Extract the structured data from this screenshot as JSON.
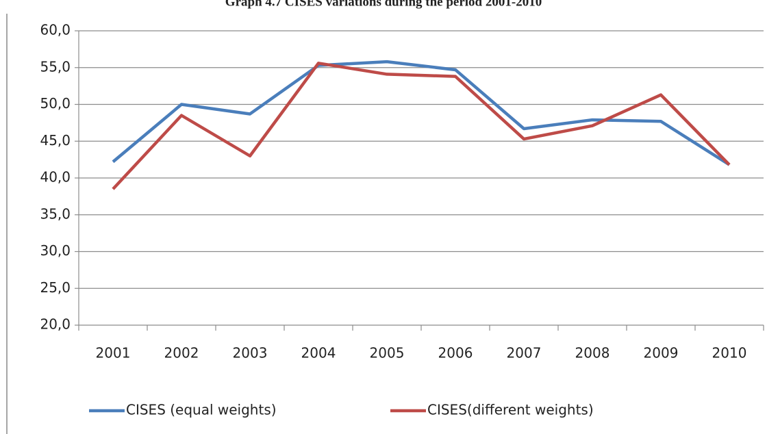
{
  "chart_data": {
    "type": "line",
    "title": "Graph 4.7 CISES variations during the period 2001-2010",
    "categories": [
      "2001",
      "2002",
      "2003",
      "2004",
      "2005",
      "2006",
      "2007",
      "2008",
      "2009",
      "2010"
    ],
    "series": [
      {
        "name": "CISES (equal weights)",
        "color": "#4a7ebb",
        "values": [
          42.2,
          50.0,
          48.7,
          55.3,
          55.8,
          54.7,
          46.7,
          47.9,
          47.7,
          41.8
        ]
      },
      {
        "name": "CISES(different weights)",
        "color": "#be4b48",
        "values": [
          38.5,
          48.5,
          43.0,
          55.6,
          54.1,
          53.8,
          45.3,
          47.1,
          51.3,
          41.8
        ]
      }
    ],
    "ylim": [
      20,
      60
    ],
    "yticks": [
      {
        "value": 20,
        "label": "20,0"
      },
      {
        "value": 25,
        "label": "25,0"
      },
      {
        "value": 30,
        "label": "30,0"
      },
      {
        "value": 35,
        "label": "35,0"
      },
      {
        "value": 40,
        "label": "40,0"
      },
      {
        "value": 45,
        "label": "45,0"
      },
      {
        "value": 50,
        "label": "50,0"
      },
      {
        "value": 55,
        "label": "55,0"
      },
      {
        "value": 60,
        "label": "60,0"
      }
    ],
    "grid": true
  }
}
